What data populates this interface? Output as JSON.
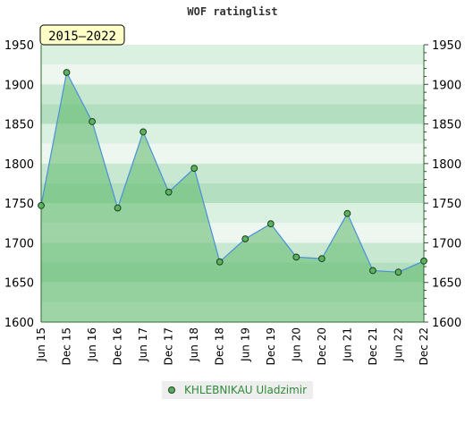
{
  "chart_data": {
    "type": "area",
    "title": "WOF ratinglist",
    "period_label": "2015–2022",
    "x": [
      "Jun 15",
      "Dec 15",
      "Jun 16",
      "Dec 16",
      "Jun 17",
      "Dec 17",
      "Jun 18",
      "Dec 18",
      "Jun 19",
      "Dec 19",
      "Jun 20",
      "Dec 20",
      "Jun 21",
      "Dec 21",
      "Jun 22",
      "Dec 22"
    ],
    "series": [
      {
        "name": "KHLEBNIKAU Uladzimir",
        "values": [
          1747,
          1915,
          1853,
          1744,
          1840,
          1764,
          1794,
          1676,
          1705,
          1724,
          1682,
          1680,
          1737,
          1665,
          1663,
          1677
        ]
      }
    ],
    "ylim": [
      1600,
      1950
    ],
    "yticks": [
      1600,
      1650,
      1700,
      1750,
      1800,
      1850,
      1900,
      1950
    ],
    "xlabel": "",
    "ylabel": "",
    "grid": true,
    "legend_position": "bottom",
    "colors": {
      "area_fill": "#5cb86a",
      "line": "#4a90d9",
      "marker_fill": "#5cb35e",
      "marker_stroke": "#1a3d1c",
      "band_dark": "#b3dfc0",
      "band_mid": "#c8e8d2",
      "band_light": "#daf0e1",
      "band_pale": "#edf7f0",
      "legend_text": "#2e8b3a",
      "badge_bg": "#ffffc8"
    }
  }
}
